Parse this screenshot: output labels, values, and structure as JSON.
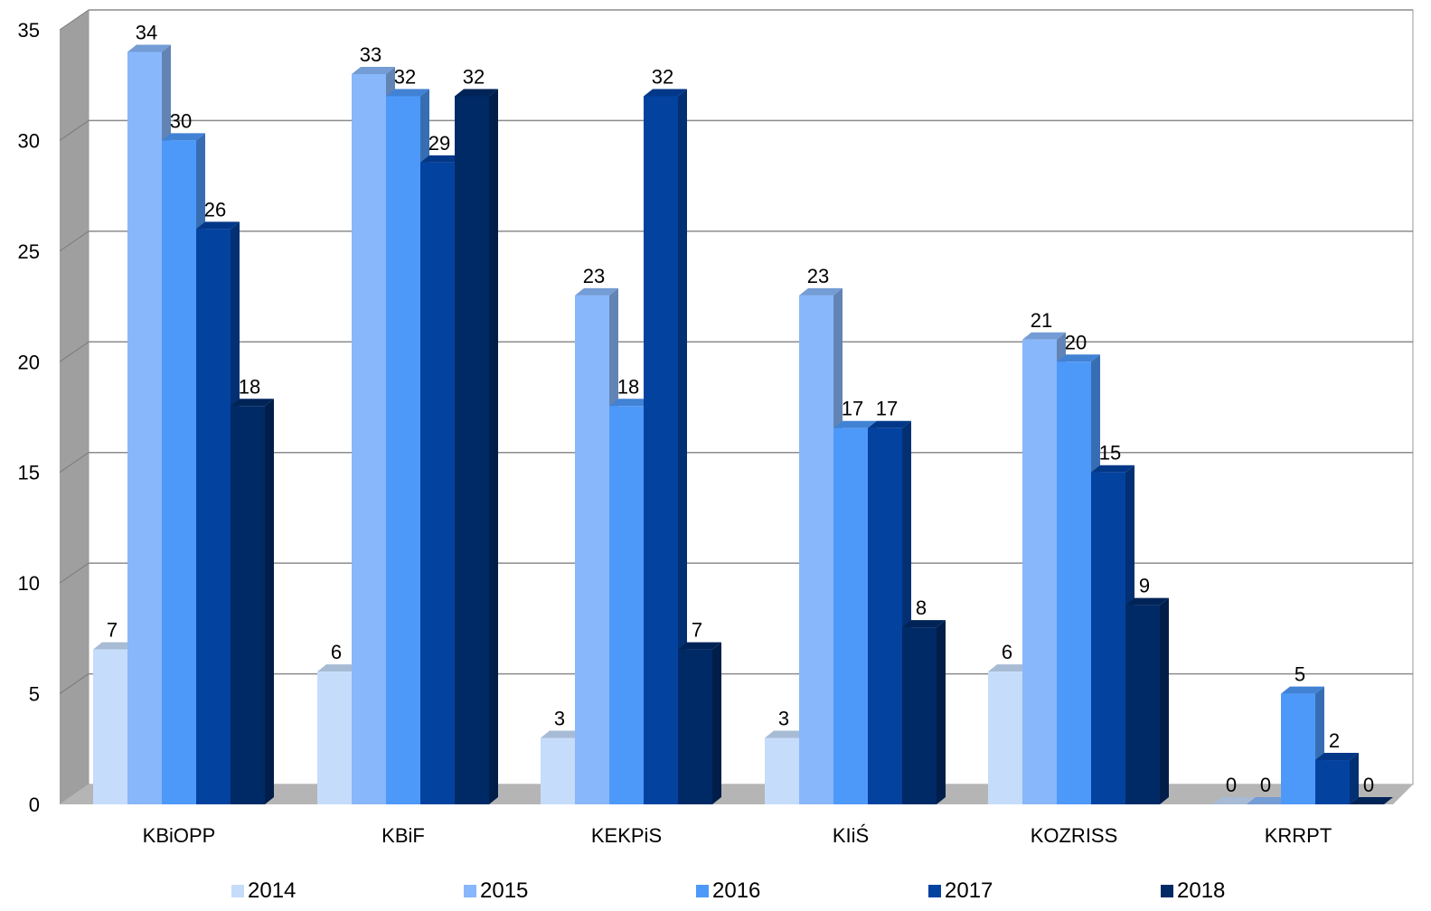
{
  "chart_data": {
    "type": "bar",
    "categories": [
      "KBiOPP",
      "KBiF",
      "KEKPiS",
      "KIiŚ",
      "KOZRISS",
      "KRRPT"
    ],
    "series": [
      {
        "name": "2014",
        "color": "#c5dcfb",
        "values": [
          7,
          6,
          3,
          3,
          6,
          0
        ]
      },
      {
        "name": "2015",
        "color": "#88b7fb",
        "values": [
          34,
          33,
          23,
          23,
          21,
          0
        ]
      },
      {
        "name": "2016",
        "color": "#4d99f9",
        "values": [
          30,
          32,
          18,
          17,
          20,
          5
        ]
      },
      {
        "name": "2017",
        "color": "#0442a0",
        "values": [
          26,
          29,
          32,
          17,
          15,
          2
        ]
      },
      {
        "name": "2018",
        "color": "#002a66",
        "values": [
          18,
          32,
          7,
          8,
          9,
          0
        ]
      }
    ],
    "ylim": [
      0,
      35
    ],
    "yticks": [
      "0",
      "5",
      "10",
      "15",
      "20",
      "25",
      "30",
      "35"
    ],
    "grid": true,
    "legend": "bottom",
    "style": "3d-clustered-column"
  }
}
